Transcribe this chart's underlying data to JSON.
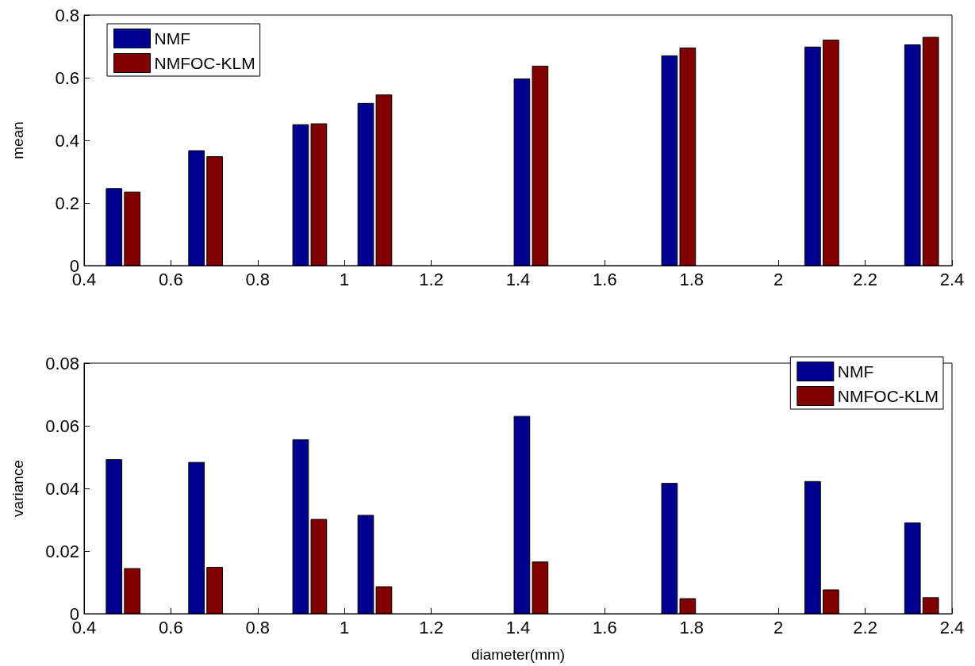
{
  "chart_data": [
    {
      "type": "bar",
      "ylabel": "mean",
      "x": [
        0.49,
        0.68,
        0.92,
        1.07,
        1.43,
        1.77,
        2.1,
        2.33
      ],
      "series": [
        {
          "name": "NMF",
          "color": "#000090",
          "values": [
            0.246,
            0.367,
            0.45,
            0.518,
            0.596,
            0.67,
            0.698,
            0.705
          ]
        },
        {
          "name": "NMFOC-KLM",
          "color": "#800000",
          "values": [
            0.235,
            0.348,
            0.453,
            0.545,
            0.637,
            0.695,
            0.72,
            0.729
          ]
        }
      ],
      "xlim": [
        0.4,
        2.4
      ],
      "xticks": [
        0.4,
        0.6,
        0.8,
        1,
        1.2,
        1.4,
        1.6,
        1.8,
        2,
        2.2,
        2.4
      ],
      "ylim": [
        0,
        0.8
      ],
      "yticks": [
        0,
        0.2,
        0.4,
        0.6,
        0.8
      ],
      "legend": "top left"
    },
    {
      "type": "bar",
      "ylabel": "variance",
      "xlabel": "diameter(mm)",
      "x": [
        0.49,
        0.68,
        0.92,
        1.07,
        1.43,
        1.77,
        2.1,
        2.33
      ],
      "series": [
        {
          "name": "NMF",
          "color": "#000090",
          "values": [
            0.0492,
            0.0483,
            0.0555,
            0.0314,
            0.063,
            0.0416,
            0.0422,
            0.029
          ]
        },
        {
          "name": "NMFOC-KLM",
          "color": "#800000",
          "values": [
            0.0144,
            0.0148,
            0.0301,
            0.0086,
            0.0165,
            0.0048,
            0.0076,
            0.0051
          ]
        }
      ],
      "xlim": [
        0.4,
        2.4
      ],
      "xticks": [
        0.4,
        0.6,
        0.8,
        1,
        1.2,
        1.4,
        1.6,
        1.8,
        2,
        2.2,
        2.4
      ],
      "ylim": [
        0,
        0.08
      ],
      "yticks": [
        0,
        0.02,
        0.04,
        0.06,
        0.08
      ],
      "legend": "top right"
    }
  ]
}
